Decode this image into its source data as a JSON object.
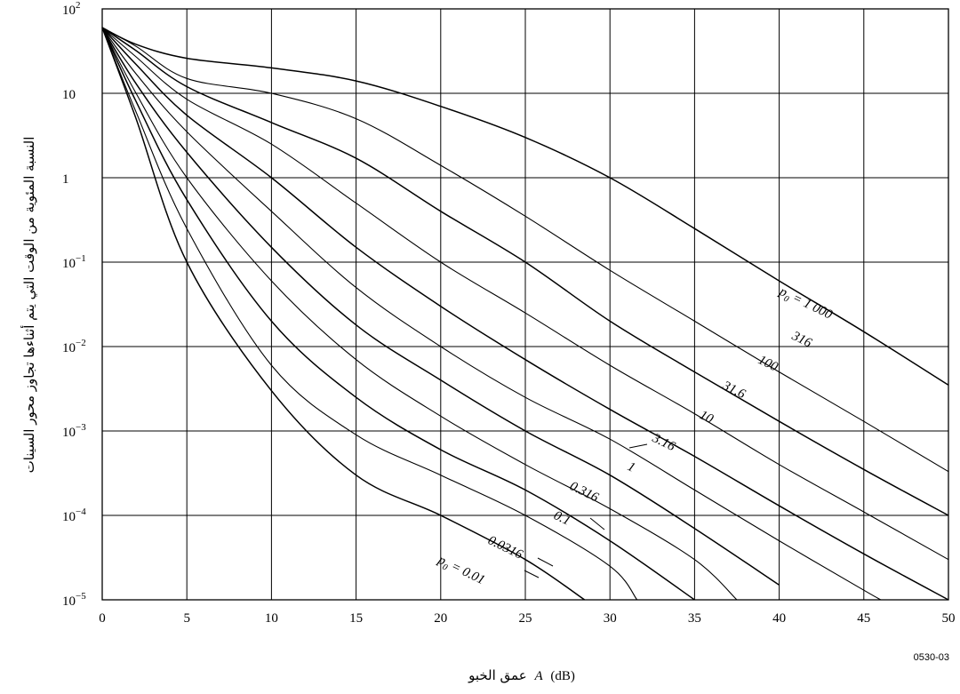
{
  "chart_data": {
    "type": "line",
    "x_scale": "linear",
    "y_scale": "log",
    "grid": true,
    "xlim": [
      0,
      50
    ],
    "ylim": [
      1e-05,
      100
    ],
    "x_ticks": [
      0,
      5,
      10,
      15,
      20,
      25,
      30,
      35,
      40,
      45,
      50
    ],
    "x_tick_labels": [
      "0",
      "5",
      "10",
      "15",
      "20",
      "25",
      "30",
      "35",
      "40",
      "45",
      "50"
    ],
    "y_ticks": [
      1e-05,
      0.0001,
      0.001,
      0.01,
      0.1,
      1,
      10,
      100
    ],
    "y_tick_labels": [
      {
        "base": "10",
        "sup": "−5"
      },
      {
        "base": "10",
        "sup": "−4"
      },
      {
        "base": "10",
        "sup": "−3"
      },
      {
        "base": "10",
        "sup": "−2"
      },
      {
        "base": "10",
        "sup": "−1"
      },
      {
        "base": "1",
        "sup": ""
      },
      {
        "base": "10",
        "sup": ""
      },
      {
        "base": "10",
        "sup": "2"
      }
    ],
    "xlabel": {
      "arabic": "عمق الخبو",
      "var": "A",
      "unit": "(dB)"
    },
    "ylabel": "النسبة المئوية من الوقت التي يتم أثناءها تجاوز محور السينات",
    "figure_code": "0530-03",
    "series": [
      {
        "name": "p0 = 0.01",
        "label": "p0 = 0.01",
        "x": [
          0,
          2,
          5,
          10,
          15,
          20,
          25,
          28.5
        ],
        "y": [
          60,
          5,
          0.1,
          0.003,
          0.0003,
          0.0001,
          3e-05,
          1e-05
        ]
      },
      {
        "name": "0.0316",
        "label": "0.0316",
        "x": [
          0,
          2,
          5,
          10,
          15,
          20,
          25,
          30,
          31.6
        ],
        "y": [
          60,
          6,
          0.25,
          0.006,
          0.0009,
          0.0003,
          0.0001,
          2.5e-05,
          1e-05
        ]
      },
      {
        "name": "0.1",
        "label": "0.1",
        "x": [
          0,
          2,
          5,
          10,
          15,
          20,
          25,
          30,
          35
        ],
        "y": [
          60,
          8,
          0.55,
          0.02,
          0.0025,
          0.0006,
          0.0002,
          5e-05,
          1e-05
        ]
      },
      {
        "name": "0.316",
        "label": "0.316",
        "x": [
          0,
          2,
          5,
          10,
          15,
          20,
          25,
          30,
          35,
          37.5
        ],
        "y": [
          60,
          10,
          1.0,
          0.06,
          0.007,
          0.0015,
          0.0004,
          0.00012,
          3e-05,
          1e-05
        ]
      },
      {
        "name": "1",
        "label": "1",
        "x": [
          0,
          2,
          5,
          10,
          15,
          20,
          25,
          30,
          35,
          40
        ],
        "y": [
          60,
          13,
          2.0,
          0.15,
          0.018,
          0.004,
          0.001,
          0.0003,
          7e-05,
          1.5e-05
        ]
      },
      {
        "name": "3.16",
        "label": "3.16",
        "x": [
          0,
          2,
          5,
          10,
          15,
          20,
          25,
          30,
          35,
          40,
          45,
          46
        ],
        "y": [
          60,
          17,
          3.5,
          0.4,
          0.05,
          0.01,
          0.0025,
          0.0008,
          0.0002,
          5e-05,
          1.3e-05,
          1e-05
        ]
      },
      {
        "name": "10",
        "label": "10",
        "x": [
          0,
          2,
          5,
          10,
          15,
          20,
          25,
          30,
          35,
          40,
          45,
          50
        ],
        "y": [
          60,
          22,
          5.5,
          1.0,
          0.15,
          0.03,
          0.007,
          0.0018,
          0.0005,
          0.00013,
          3.5e-05,
          1e-05
        ]
      },
      {
        "name": "31.6",
        "label": "31.6",
        "x": [
          0,
          2,
          5,
          10,
          15,
          20,
          25,
          30,
          35,
          40,
          45,
          50
        ],
        "y": [
          60,
          27,
          8.5,
          2.5,
          0.5,
          0.1,
          0.025,
          0.006,
          0.0016,
          0.0004,
          0.00011,
          3e-05
        ]
      },
      {
        "name": "100",
        "label": "100",
        "x": [
          0,
          2,
          5,
          10,
          15,
          20,
          25,
          30,
          35,
          40,
          45,
          50
        ],
        "y": [
          60,
          32,
          12,
          4.5,
          1.7,
          0.4,
          0.1,
          0.02,
          0.005,
          0.0013,
          0.00035,
          0.0001
        ]
      },
      {
        "name": "316",
        "label": "316",
        "x": [
          0,
          2,
          5,
          10,
          15,
          20,
          25,
          30,
          35,
          40,
          45,
          50
        ],
        "y": [
          60,
          36,
          15,
          10,
          5,
          1.4,
          0.35,
          0.08,
          0.02,
          0.005,
          0.0013,
          0.00033
        ]
      },
      {
        "name": "p0 = 1 000",
        "label": "p0 = 1 000",
        "x": [
          0,
          2,
          5,
          10,
          15,
          20,
          25,
          30,
          35,
          40,
          45,
          50
        ],
        "y": [
          60,
          38,
          26,
          20,
          14,
          7,
          3,
          1.0,
          0.25,
          0.06,
          0.015,
          0.0035
        ]
      }
    ]
  }
}
